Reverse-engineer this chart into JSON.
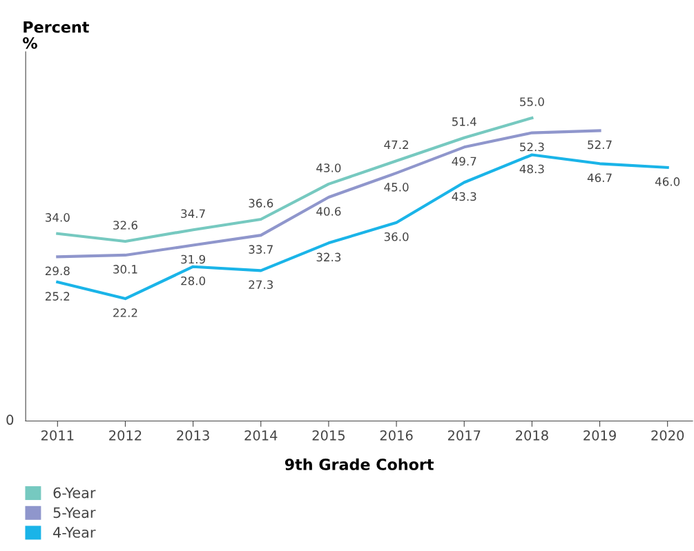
{
  "chart_data": {
    "type": "line",
    "xlabel": "9th Grade Cohort",
    "ylabel": "Percent\n%",
    "annotations": [
      "0"
    ],
    "categories": [
      "2011",
      "2012",
      "2013",
      "2014",
      "2015",
      "2016",
      "2017",
      "2018",
      "2019",
      "2020"
    ],
    "series": [
      {
        "name": "6-Year",
        "color": "#76c9c0",
        "values": [
          34.0,
          32.6,
          34.7,
          36.6,
          43.0,
          47.2,
          51.4,
          55.0,
          null,
          null
        ],
        "value_labels": [
          "34.0",
          "32.6",
          "34.7",
          "36.6",
          "43.0",
          "47.2",
          "51.4",
          "55.0",
          null,
          null
        ]
      },
      {
        "name": "5-Year",
        "color": "#8f96cc",
        "values": [
          29.8,
          30.1,
          31.9,
          33.7,
          40.6,
          45.0,
          49.7,
          52.3,
          52.7,
          null
        ],
        "value_labels": [
          "29.8",
          "30.1",
          "31.9",
          "33.7",
          "40.6",
          "45.0",
          "49.7",
          "52.3",
          "52.7",
          null
        ]
      },
      {
        "name": "4-Year",
        "color": "#1ab4e8",
        "values": [
          25.2,
          22.2,
          28.0,
          27.3,
          32.3,
          36.0,
          43.3,
          48.3,
          46.7,
          46.0
        ],
        "value_labels": [
          "25.2",
          "22.2",
          "28.0",
          "27.3",
          "32.3",
          "36.0",
          "43.3",
          "48.3",
          "46.7",
          "46.0"
        ]
      }
    ],
    "ylim": [
      0,
      67
    ],
    "tick_labels": "x",
    "grid": false,
    "legend": "bottom left",
    "marker": "none",
    "line_style": "solid"
  }
}
